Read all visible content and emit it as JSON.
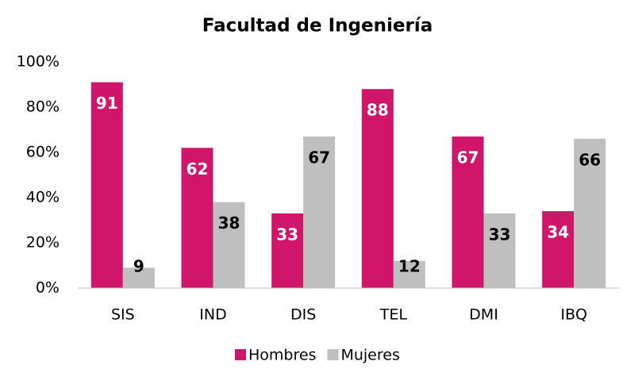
{
  "chart_data": {
    "type": "bar",
    "title": "Facultad de Ingeniería",
    "categories": [
      "SIS",
      "IND",
      "DIS",
      "TEL",
      "DMI",
      "IBQ"
    ],
    "series": [
      {
        "name": "Hombres",
        "color": "#d1156b",
        "values": [
          91,
          62,
          33,
          88,
          67,
          34
        ]
      },
      {
        "name": "Mujeres",
        "color": "#bfbfbf",
        "values": [
          9,
          38,
          67,
          12,
          33,
          66
        ]
      }
    ],
    "ylim": [
      0,
      100
    ],
    "yticks": [
      {
        "value": 0,
        "label": "0%"
      },
      {
        "value": 20,
        "label": "20%"
      },
      {
        "value": 40,
        "label": "40%"
      },
      {
        "value": 60,
        "label": "60%"
      },
      {
        "value": 80,
        "label": "80%"
      },
      {
        "value": 100,
        "label": "100%"
      }
    ],
    "grid": false,
    "legend": "bottom"
  }
}
